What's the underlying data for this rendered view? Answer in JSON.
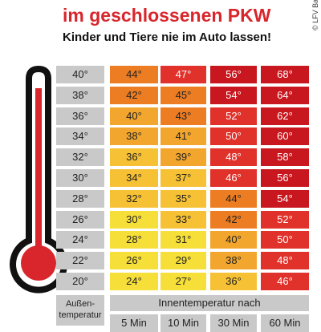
{
  "header": {
    "title": "im geschlossenen PKW",
    "subtitle": "Kinder und Tiere nie im Auto lassen!",
    "copyright": "© LFV Ba"
  },
  "table": {
    "rows": [
      [
        "40°",
        "44°",
        "47°",
        "56°",
        "68°"
      ],
      [
        "38°",
        "42°",
        "45°",
        "54°",
        "64°"
      ],
      [
        "36°",
        "40°",
        "43°",
        "52°",
        "62°"
      ],
      [
        "34°",
        "38°",
        "41°",
        "50°",
        "60°"
      ],
      [
        "32°",
        "36°",
        "39°",
        "48°",
        "58°"
      ],
      [
        "30°",
        "34°",
        "37°",
        "46°",
        "56°"
      ],
      [
        "28°",
        "32°",
        "35°",
        "44°",
        "54°"
      ],
      [
        "26°",
        "30°",
        "33°",
        "42°",
        "52°"
      ],
      [
        "24°",
        "28°",
        "31°",
        "40°",
        "50°"
      ],
      [
        "22°",
        "26°",
        "29°",
        "38°",
        "48°"
      ],
      [
        "20°",
        "24°",
        "27°",
        "36°",
        "46°"
      ]
    ],
    "outside_label": "Außen-temperatur",
    "inside_label": "Innentemperatur nach",
    "times": [
      "5 Min",
      "10 Min",
      "30 Min",
      "60 Min"
    ]
  }
}
